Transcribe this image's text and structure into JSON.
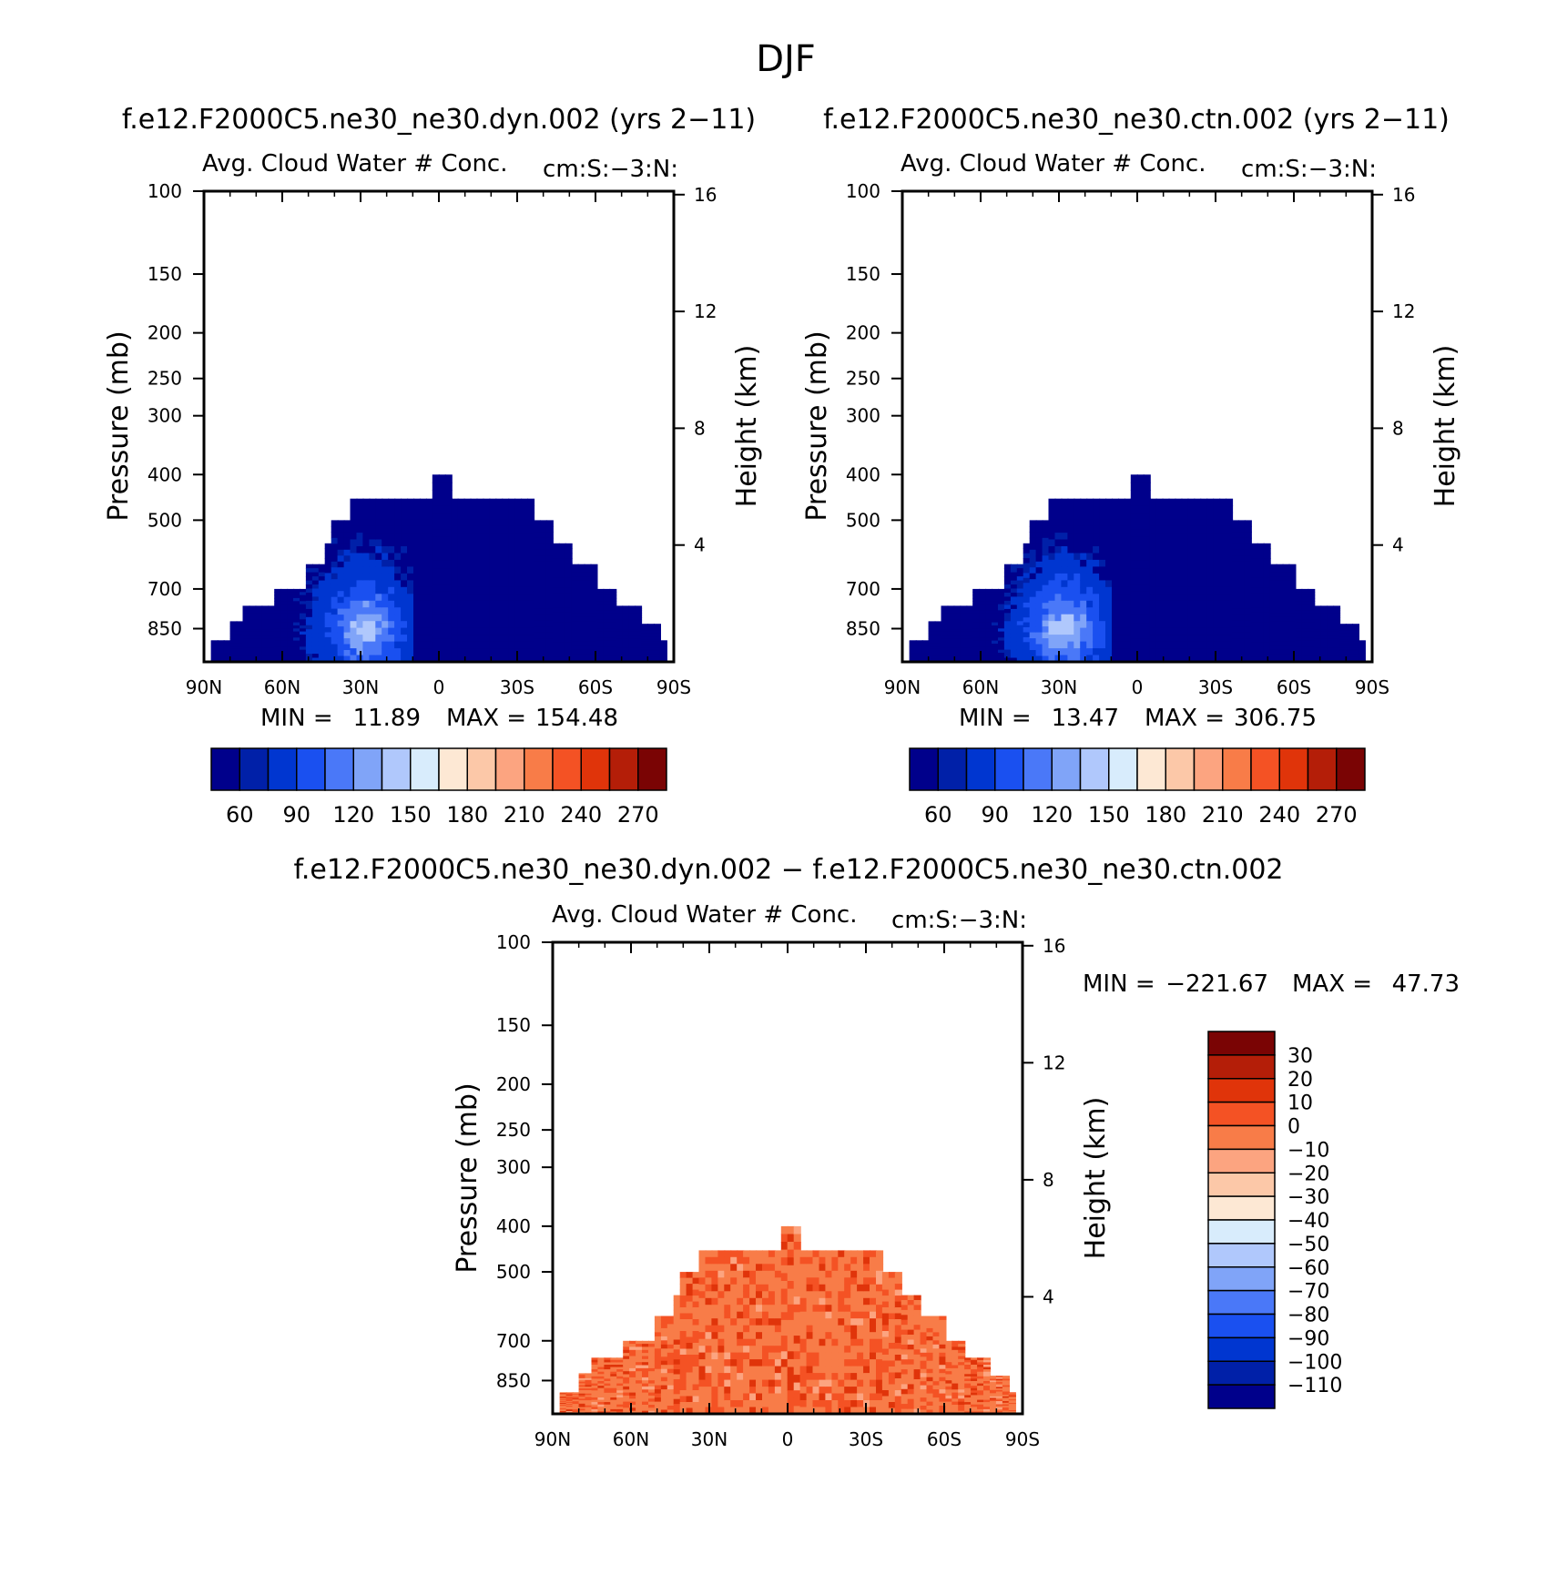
{
  "title": "DJF",
  "colors": {
    "blue_red_scale": [
      "#00008b",
      "#0020a8",
      "#0036d0",
      "#1a50f0",
      "#4a78f8",
      "#80a4f8",
      "#b0c8fc",
      "#d8ecfc",
      "#fde8d4",
      "#fcc8a8",
      "#fca480",
      "#f87c48",
      "#f45224",
      "#e0340a",
      "#b41e08",
      "#7a0404"
    ]
  },
  "chart_data": [
    {
      "type": "heatmap",
      "subtitle": "f.e12.F2000C5.ne30_ne30.dyn.002 (yrs 2−11)",
      "left_label": "Avg. Cloud Water # Conc.",
      "right_label": "cm:S:−3:N:",
      "ylabel": "Pressure (mb)",
      "ylabel_right": "Height (km)",
      "x_ticks": [
        "90N",
        "60N",
        "30N",
        "0",
        "30S",
        "60S",
        "90S"
      ],
      "y_ticks": [
        "100",
        "150",
        "200",
        "250",
        "300",
        "400",
        "500",
        "700",
        "850"
      ],
      "y_right_ticks": [
        "16",
        "12",
        "8",
        "4"
      ],
      "ylim_mb": [
        100,
        1000
      ],
      "log_pressure_axis": true,
      "stats": {
        "min_label": "MIN =",
        "min": "11.89",
        "max_label": "MAX =",
        "max": "154.48"
      },
      "colorbar": {
        "orientation": "horizontal",
        "labels": [
          "60",
          "90",
          "120",
          "150",
          "180",
          "210",
          "240",
          "270"
        ]
      },
      "field_description": "Cloud water concentration below ~450 mb, values mostly dark blue (<60) with lighter blues up to ~150 near 30N at 850 mb"
    },
    {
      "type": "heatmap",
      "subtitle": "f.e12.F2000C5.ne30_ne30.ctn.002 (yrs 2−11)",
      "left_label": "Avg. Cloud Water # Conc.",
      "right_label": "cm:S:−3:N:",
      "ylabel": "Pressure (mb)",
      "ylabel_right": "Height (km)",
      "x_ticks": [
        "90N",
        "60N",
        "30N",
        "0",
        "30S",
        "60S",
        "90S"
      ],
      "y_ticks": [
        "100",
        "150",
        "200",
        "250",
        "300",
        "400",
        "500",
        "700",
        "850"
      ],
      "y_right_ticks": [
        "16",
        "12",
        "8",
        "4"
      ],
      "ylim_mb": [
        100,
        1000
      ],
      "log_pressure_axis": true,
      "stats": {
        "min_label": "MIN =",
        "min": "13.47",
        "max_label": "MAX =",
        "max": "306.75"
      },
      "colorbar": {
        "orientation": "horizontal",
        "labels": [
          "60",
          "90",
          "120",
          "150",
          "180",
          "210",
          "240",
          "270"
        ]
      },
      "field_description": "Similar structure to dyn run, dark blue dominant, lighter blues near 30N at 850 mb"
    },
    {
      "type": "heatmap",
      "subtitle": "f.e12.F2000C5.ne30_ne30.dyn.002 − f.e12.F2000C5.ne30_ne30.ctn.002",
      "left_label": "Avg. Cloud Water # Conc.",
      "right_label": "cm:S:−3:N:",
      "ylabel": "Pressure (mb)",
      "ylabel_right": "Height (km)",
      "x_ticks": [
        "90N",
        "60N",
        "30N",
        "0",
        "30S",
        "60S",
        "90S"
      ],
      "y_ticks": [
        "100",
        "150",
        "200",
        "250",
        "300",
        "400",
        "500",
        "700",
        "850"
      ],
      "y_right_ticks": [
        "16",
        "12",
        "8",
        "4"
      ],
      "ylim_mb": [
        100,
        1000
      ],
      "log_pressure_axis": true,
      "stats": {
        "min_label": "MIN =",
        "min": "−221.67",
        "max_label": "MAX =",
        "max": "47.73"
      },
      "colorbar": {
        "orientation": "vertical",
        "labels": [
          "30",
          "20",
          "10",
          "0",
          "−10",
          "−20",
          "−30",
          "−40",
          "−50",
          "−60",
          "−70",
          "−80",
          "−90",
          "−100",
          "−110"
        ]
      },
      "field_description": "Difference field mostly orange (-10 to 10) below ~450 mb"
    }
  ]
}
